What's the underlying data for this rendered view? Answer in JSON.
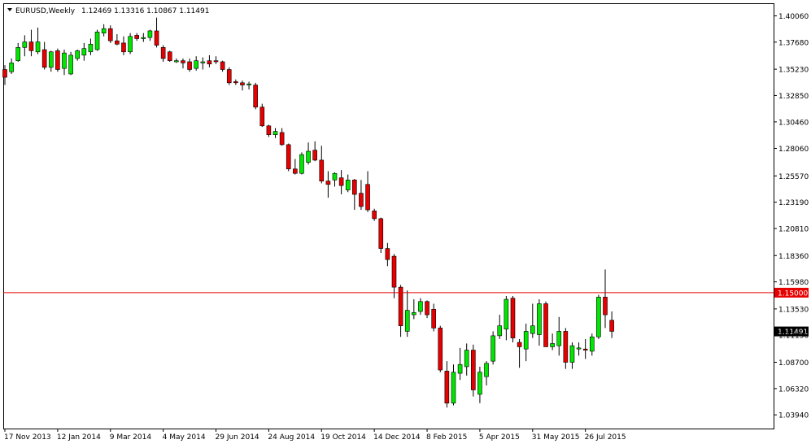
{
  "header": {
    "symbol": "EURUSD,Weekly",
    "ohlc": "1.12469 1.13316 1.10867 1.11491"
  },
  "colors": {
    "bull": "#00e600",
    "bear": "#e60000",
    "frame": "#000000",
    "hline": "#e60000",
    "price_tag_bg": "#e60000",
    "price_tag_text": "#ffffff",
    "current_tag_bg": "#000000",
    "current_tag_text": "#ffffff"
  },
  "chart_data": {
    "type": "candlestick",
    "title": "EURUSD,Weekly",
    "ylim": [
      1.027,
      1.412
    ],
    "y_ticks": [
      "1.40060",
      "1.37680",
      "1.35230",
      "1.32850",
      "1.30460",
      "1.28060",
      "1.25570",
      "1.23190",
      "1.20810",
      "1.18360",
      "1.15980",
      "1.13530",
      "1.11150",
      "1.08700",
      "1.06320",
      "1.03940"
    ],
    "x_ticks": [
      "17 Nov 2013",
      "12 Jan 2014",
      "9 Mar 2014",
      "4 May 2014",
      "29 Jun 2014",
      "24 Aug 2014",
      "19 Oct 2014",
      "14 Dec 2014",
      "8 Feb 2015",
      "5 Apr 2015",
      "31 May 2015",
      "26 Jul 2015"
    ],
    "horizontal_line": {
      "value": 1.15,
      "label": "1.15000"
    },
    "current_price": {
      "value": 1.11491,
      "label": "1.11491"
    },
    "candles": [
      {
        "o": 1.352,
        "h": 1.356,
        "l": 1.338,
        "c": 1.345
      },
      {
        "o": 1.35,
        "h": 1.362,
        "l": 1.348,
        "c": 1.358
      },
      {
        "o": 1.36,
        "h": 1.376,
        "l": 1.359,
        "c": 1.372
      },
      {
        "o": 1.372,
        "h": 1.383,
        "l": 1.364,
        "c": 1.377
      },
      {
        "o": 1.377,
        "h": 1.388,
        "l": 1.364,
        "c": 1.369
      },
      {
        "o": 1.368,
        "h": 1.39,
        "l": 1.366,
        "c": 1.377
      },
      {
        "o": 1.37,
        "h": 1.377,
        "l": 1.352,
        "c": 1.354
      },
      {
        "o": 1.354,
        "h": 1.369,
        "l": 1.35,
        "c": 1.368
      },
      {
        "o": 1.369,
        "h": 1.371,
        "l": 1.35,
        "c": 1.352
      },
      {
        "o": 1.353,
        "h": 1.37,
        "l": 1.347,
        "c": 1.367
      },
      {
        "o": 1.348,
        "h": 1.368,
        "l": 1.347,
        "c": 1.365
      },
      {
        "o": 1.362,
        "h": 1.37,
        "l": 1.36,
        "c": 1.369
      },
      {
        "o": 1.365,
        "h": 1.376,
        "l": 1.36,
        "c": 1.371
      },
      {
        "o": 1.368,
        "h": 1.38,
        "l": 1.365,
        "c": 1.375
      },
      {
        "o": 1.37,
        "h": 1.388,
        "l": 1.369,
        "c": 1.386
      },
      {
        "o": 1.385,
        "h": 1.393,
        "l": 1.382,
        "c": 1.389
      },
      {
        "o": 1.389,
        "h": 1.392,
        "l": 1.376,
        "c": 1.378
      },
      {
        "o": 1.378,
        "h": 1.384,
        "l": 1.374,
        "c": 1.375
      },
      {
        "o": 1.376,
        "h": 1.382,
        "l": 1.365,
        "c": 1.368
      },
      {
        "o": 1.368,
        "h": 1.385,
        "l": 1.366,
        "c": 1.382
      },
      {
        "o": 1.383,
        "h": 1.385,
        "l": 1.378,
        "c": 1.38
      },
      {
        "o": 1.38,
        "h": 1.385,
        "l": 1.377,
        "c": 1.381
      },
      {
        "o": 1.381,
        "h": 1.388,
        "l": 1.378,
        "c": 1.387
      },
      {
        "o": 1.387,
        "h": 1.399,
        "l": 1.372,
        "c": 1.374
      },
      {
        "o": 1.372,
        "h": 1.374,
        "l": 1.359,
        "c": 1.362
      },
      {
        "o": 1.368,
        "h": 1.369,
        "l": 1.359,
        "c": 1.36
      },
      {
        "o": 1.359,
        "h": 1.362,
        "l": 1.358,
        "c": 1.36
      },
      {
        "o": 1.36,
        "h": 1.362,
        "l": 1.353,
        "c": 1.358
      },
      {
        "o": 1.359,
        "h": 1.362,
        "l": 1.35,
        "c": 1.352
      },
      {
        "o": 1.353,
        "h": 1.364,
        "l": 1.351,
        "c": 1.36
      },
      {
        "o": 1.358,
        "h": 1.363,
        "l": 1.352,
        "c": 1.359
      },
      {
        "o": 1.36,
        "h": 1.365,
        "l": 1.354,
        "c": 1.357
      },
      {
        "o": 1.36,
        "h": 1.364,
        "l": 1.357,
        "c": 1.359
      },
      {
        "o": 1.359,
        "h": 1.36,
        "l": 1.35,
        "c": 1.352
      },
      {
        "o": 1.352,
        "h": 1.354,
        "l": 1.338,
        "c": 1.34
      },
      {
        "o": 1.341,
        "h": 1.343,
        "l": 1.338,
        "c": 1.34
      },
      {
        "o": 1.34,
        "h": 1.342,
        "l": 1.333,
        "c": 1.338
      },
      {
        "o": 1.338,
        "h": 1.341,
        "l": 1.334,
        "c": 1.339
      },
      {
        "o": 1.338,
        "h": 1.34,
        "l": 1.316,
        "c": 1.318
      },
      {
        "o": 1.318,
        "h": 1.321,
        "l": 1.3,
        "c": 1.301
      },
      {
        "o": 1.301,
        "h": 1.302,
        "l": 1.291,
        "c": 1.293
      },
      {
        "o": 1.293,
        "h": 1.299,
        "l": 1.29,
        "c": 1.296
      },
      {
        "o": 1.295,
        "h": 1.299,
        "l": 1.283,
        "c": 1.284
      },
      {
        "o": 1.284,
        "h": 1.285,
        "l": 1.26,
        "c": 1.262
      },
      {
        "o": 1.262,
        "h": 1.271,
        "l": 1.257,
        "c": 1.258
      },
      {
        "o": 1.258,
        "h": 1.277,
        "l": 1.257,
        "c": 1.275
      },
      {
        "o": 1.268,
        "h": 1.286,
        "l": 1.266,
        "c": 1.278
      },
      {
        "o": 1.279,
        "h": 1.287,
        "l": 1.269,
        "c": 1.27
      },
      {
        "o": 1.27,
        "h": 1.283,
        "l": 1.249,
        "c": 1.251
      },
      {
        "o": 1.251,
        "h": 1.26,
        "l": 1.236,
        "c": 1.248
      },
      {
        "o": 1.252,
        "h": 1.259,
        "l": 1.246,
        "c": 1.258
      },
      {
        "o": 1.254,
        "h": 1.261,
        "l": 1.239,
        "c": 1.247
      },
      {
        "o": 1.243,
        "h": 1.257,
        "l": 1.241,
        "c": 1.252
      },
      {
        "o": 1.252,
        "h": 1.253,
        "l": 1.225,
        "c": 1.239
      },
      {
        "o": 1.24,
        "h": 1.252,
        "l": 1.225,
        "c": 1.228
      },
      {
        "o": 1.248,
        "h": 1.26,
        "l": 1.223,
        "c": 1.225
      },
      {
        "o": 1.224,
        "h": 1.226,
        "l": 1.215,
        "c": 1.217
      },
      {
        "o": 1.217,
        "h": 1.218,
        "l": 1.186,
        "c": 1.19
      },
      {
        "o": 1.19,
        "h": 1.195,
        "l": 1.174,
        "c": 1.18
      },
      {
        "o": 1.183,
        "h": 1.185,
        "l": 1.145,
        "c": 1.155
      },
      {
        "o": 1.155,
        "h": 1.157,
        "l": 1.11,
        "c": 1.12
      },
      {
        "o": 1.115,
        "h": 1.152,
        "l": 1.11,
        "c": 1.134
      },
      {
        "o": 1.13,
        "h": 1.144,
        "l": 1.126,
        "c": 1.132
      },
      {
        "o": 1.133,
        "h": 1.145,
        "l": 1.13,
        "c": 1.142
      },
      {
        "o": 1.142,
        "h": 1.143,
        "l": 1.127,
        "c": 1.13
      },
      {
        "o": 1.135,
        "h": 1.14,
        "l": 1.115,
        "c": 1.118
      },
      {
        "o": 1.118,
        "h": 1.12,
        "l": 1.078,
        "c": 1.08
      },
      {
        "o": 1.079,
        "h": 1.088,
        "l": 1.046,
        "c": 1.05
      },
      {
        "o": 1.05,
        "h": 1.085,
        "l": 1.048,
        "c": 1.078
      },
      {
        "o": 1.077,
        "h": 1.1,
        "l": 1.071,
        "c": 1.085
      },
      {
        "o": 1.083,
        "h": 1.104,
        "l": 1.075,
        "c": 1.098
      },
      {
        "o": 1.098,
        "h": 1.103,
        "l": 1.056,
        "c": 1.062
      },
      {
        "o": 1.058,
        "h": 1.083,
        "l": 1.05,
        "c": 1.078
      },
      {
        "o": 1.074,
        "h": 1.088,
        "l": 1.066,
        "c": 1.086
      },
      {
        "o": 1.088,
        "h": 1.115,
        "l": 1.085,
        "c": 1.111
      },
      {
        "o": 1.111,
        "h": 1.13,
        "l": 1.108,
        "c": 1.12
      },
      {
        "o": 1.117,
        "h": 1.147,
        "l": 1.107,
        "c": 1.144
      },
      {
        "o": 1.145,
        "h": 1.147,
        "l": 1.105,
        "c": 1.109
      },
      {
        "o": 1.105,
        "h": 1.108,
        "l": 1.082,
        "c": 1.101
      },
      {
        "o": 1.099,
        "h": 1.122,
        "l": 1.088,
        "c": 1.115
      },
      {
        "o": 1.113,
        "h": 1.14,
        "l": 1.109,
        "c": 1.12
      },
      {
        "o": 1.112,
        "h": 1.144,
        "l": 1.102,
        "c": 1.14
      },
      {
        "o": 1.14,
        "h": 1.142,
        "l": 1.104,
        "c": 1.101
      },
      {
        "o": 1.101,
        "h": 1.113,
        "l": 1.098,
        "c": 1.104
      },
      {
        "o": 1.102,
        "h": 1.128,
        "l": 1.093,
        "c": 1.115
      },
      {
        "o": 1.115,
        "h": 1.118,
        "l": 1.081,
        "c": 1.087
      },
      {
        "o": 1.087,
        "h": 1.105,
        "l": 1.081,
        "c": 1.102
      },
      {
        "o": 1.099,
        "h": 1.105,
        "l": 1.093,
        "c": 1.1
      },
      {
        "o": 1.099,
        "h": 1.108,
        "l": 1.09,
        "c": 1.098
      },
      {
        "o": 1.097,
        "h": 1.113,
        "l": 1.093,
        "c": 1.11
      },
      {
        "o": 1.11,
        "h": 1.148,
        "l": 1.108,
        "c": 1.146
      },
      {
        "o": 1.146,
        "h": 1.171,
        "l": 1.118,
        "c": 1.13
      },
      {
        "o": 1.125,
        "h": 1.133,
        "l": 1.109,
        "c": 1.115
      }
    ]
  }
}
